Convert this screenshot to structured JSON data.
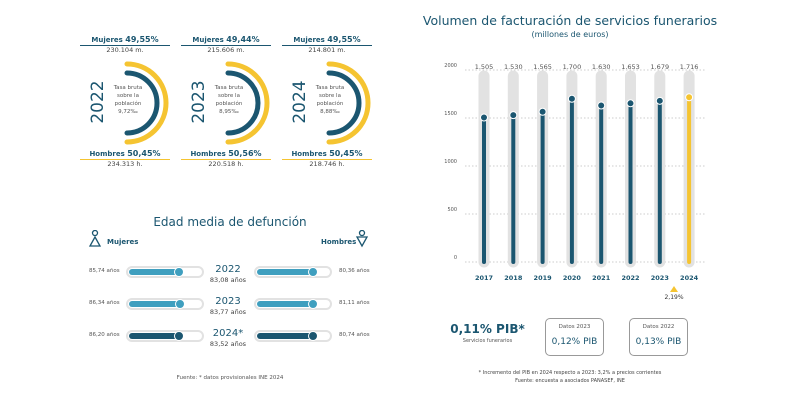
{
  "rates": [
    {
      "year": "2022",
      "mujeres_label": "Mujeres",
      "mujeres_pct": "49,55%",
      "mujeres_count": "230.104 m.",
      "hombres_label": "Hombres",
      "hombres_pct": "50,45%",
      "hombres_count": "234.313 h.",
      "tasa_l1": "Tasa bruta",
      "tasa_l2": "sobre la",
      "tasa_l3": "población",
      "tasa_value": "9,72‰"
    },
    {
      "year": "2023",
      "mujeres_label": "Mujeres",
      "mujeres_pct": "49,44%",
      "mujeres_count": "215.606 m.",
      "hombres_label": "Hombres",
      "hombres_pct": "50,56%",
      "hombres_count": "220.518 h.",
      "tasa_l1": "Tasa bruta",
      "tasa_l2": "sobre la",
      "tasa_l3": "población",
      "tasa_value": "8,95‰"
    },
    {
      "year": "2024",
      "mujeres_label": "Mujeres",
      "mujeres_pct": "49,55%",
      "mujeres_count": "214.801 m.",
      "hombres_label": "Hombres",
      "hombres_pct": "50,45%",
      "hombres_count": "218.746 h.",
      "tasa_l1": "Tasa bruta",
      "tasa_l2": "sobre la",
      "tasa_l3": "población",
      "tasa_value": "8,88‰"
    }
  ],
  "edad": {
    "title": "Edad media de defunción",
    "mujeres_label": "Mujeres",
    "hombres_label": "Hombres",
    "rows": [
      {
        "year": "2022",
        "media": "83,08 años",
        "mujeres": "85,74 años",
        "hombres": "80,36 años",
        "mujeres_fill": 0.68,
        "hombres_fill": 0.77,
        "color": "#3f9fbf"
      },
      {
        "year": "2023",
        "media": "83,77 años",
        "mujeres": "86,34 años",
        "hombres": "81,11 años",
        "mujeres_fill": 0.7,
        "hombres_fill": 0.77,
        "color": "#3f9fbf"
      },
      {
        "year": "2024*",
        "media": "83,52 años",
        "mujeres": "86,20 años",
        "hombres": "80,74 años",
        "mujeres_fill": 0.68,
        "hombres_fill": 0.76,
        "color": "#1b5670"
      }
    ],
    "source": "Fuente: * datos provisionales INE 2024"
  },
  "chart_data": {
    "type": "bar",
    "title": "Volumen de facturación de servicios funerarios",
    "subtitle": "(millones de euros)",
    "categories": [
      "2017",
      "2018",
      "2019",
      "2020",
      "2021",
      "2022",
      "2023",
      "2024"
    ],
    "values": [
      1505,
      1530,
      1565,
      1700,
      1630,
      1653,
      1679,
      1716
    ],
    "value_labels": [
      "1.505",
      "1.530",
      "1.565",
      "1.700",
      "1.630",
      "1.653",
      "1.679",
      "1.716"
    ],
    "yticks": [
      "2000",
      "1500",
      "1000",
      "500",
      "0"
    ],
    "ylim": [
      0,
      2000
    ],
    "grid": true,
    "colors": {
      "default": "#1b5670",
      "highlight": "#f5c431",
      "track": "#e2e2e2"
    },
    "annotation": "2,19%"
  },
  "pib": {
    "main": "0,11% PIB*",
    "main_sub": "Servicios funerarios",
    "box1_title": "Datos 2023",
    "box1_value": "0,12% PIB",
    "box2_title": "Datos 2022",
    "box2_value": "0,13% PIB",
    "note": "* Incremento del PIB en 2024 respecto a 2023: 3,2% a precios corrientes",
    "source": "Fuente: encuesta a asociados PANASEF, INE"
  }
}
